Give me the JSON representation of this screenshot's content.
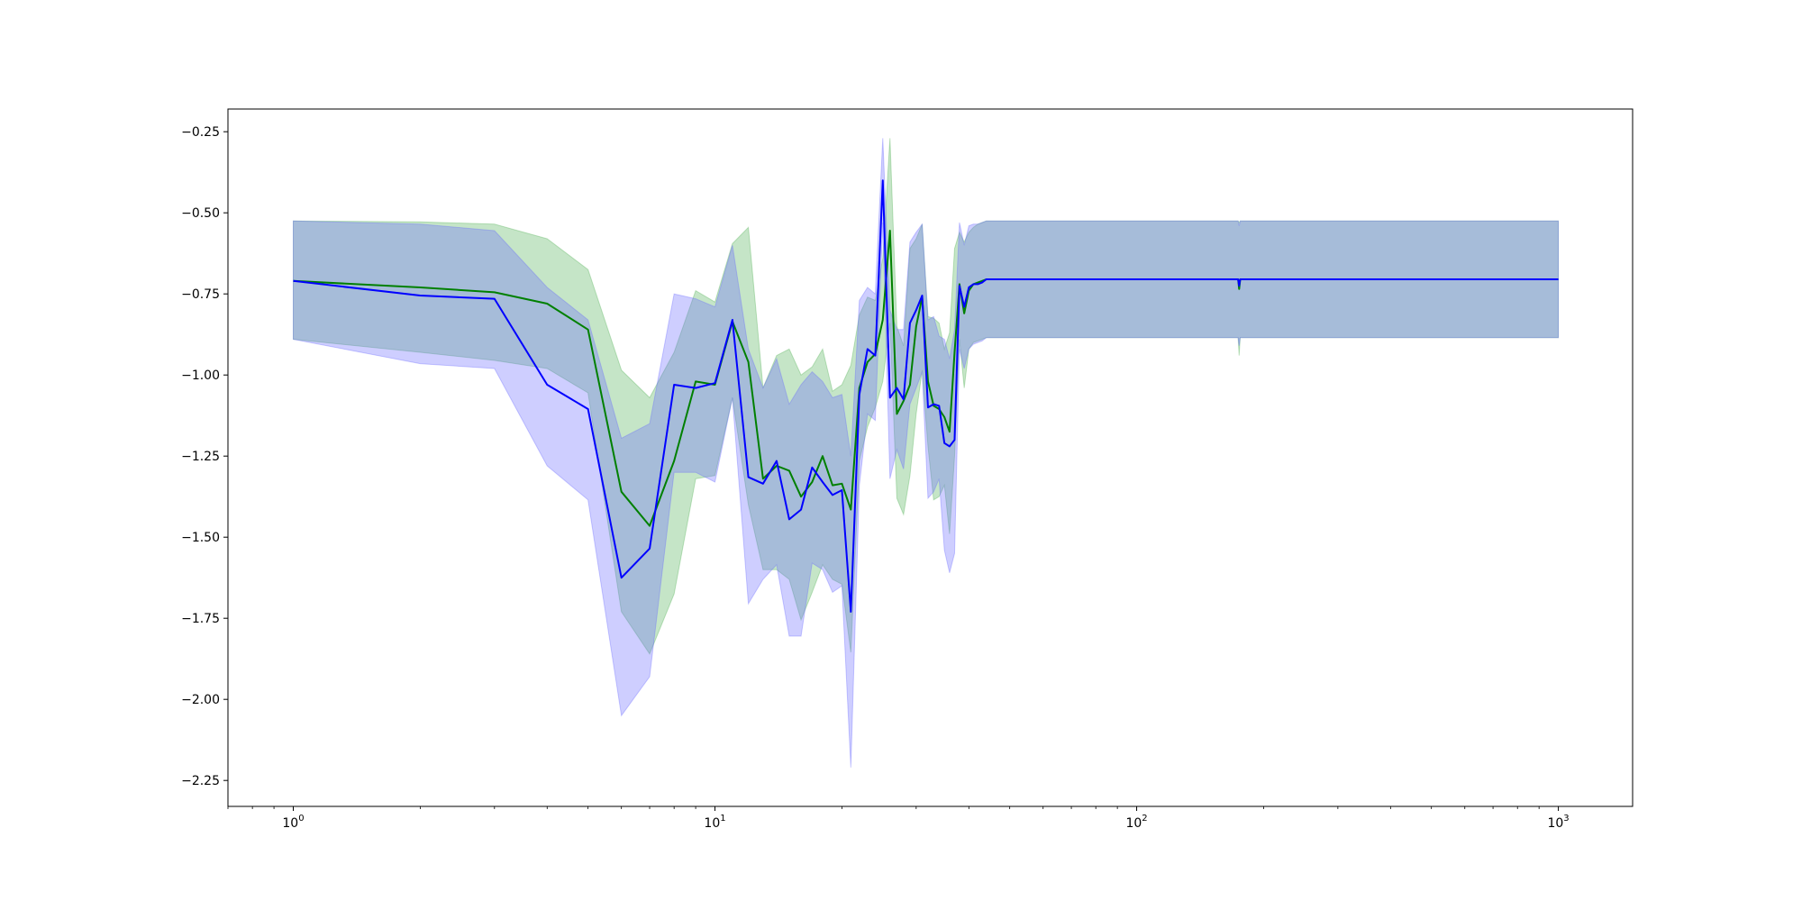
{
  "chart_data": {
    "type": "line",
    "title": "",
    "xlabel": "",
    "ylabel": "",
    "xscale": "log",
    "xlim": [
      0.7,
      1500
    ],
    "ylim": [
      -2.33,
      -0.18
    ],
    "grid": false,
    "legend": "none",
    "x_tick_labels": [
      {
        "value": 1,
        "base": "10",
        "exp": "0"
      },
      {
        "value": 10,
        "base": "10",
        "exp": "1"
      },
      {
        "value": 100,
        "base": "10",
        "exp": "2"
      },
      {
        "value": 1000,
        "base": "10",
        "exp": "3"
      }
    ],
    "y_ticks": [
      -0.25,
      -0.5,
      -0.75,
      -1.0,
      -1.25,
      -1.5,
      -1.75,
      -2.0,
      -2.25
    ],
    "y_tick_labels": [
      "−0.25",
      "−0.50",
      "−0.75",
      "−1.00",
      "−1.25",
      "−1.50",
      "−1.75",
      "−2.00",
      "−2.25"
    ],
    "series": [
      {
        "color": "#008000",
        "band_color": "#4caf50",
        "x": [
          1,
          2,
          3,
          4,
          5,
          6,
          7,
          8,
          9,
          10,
          11,
          12,
          13,
          14,
          15,
          16,
          17,
          18,
          19,
          20,
          21,
          22,
          23,
          24,
          25,
          26,
          27,
          28,
          29,
          30,
          31,
          32,
          33,
          34,
          35,
          36,
          37,
          38,
          39,
          40,
          41,
          42,
          43,
          44,
          45,
          174,
          175,
          176,
          1000
        ],
        "y": [
          -0.71,
          -0.73,
          -0.745,
          -0.78,
          -0.86,
          -1.36,
          -1.465,
          -1.265,
          -1.02,
          -1.03,
          -0.835,
          -0.96,
          -1.32,
          -1.28,
          -1.295,
          -1.375,
          -1.33,
          -1.25,
          -1.34,
          -1.335,
          -1.415,
          -1.04,
          -0.96,
          -0.935,
          -0.83,
          -0.555,
          -1.12,
          -1.08,
          -1.03,
          -0.85,
          -0.76,
          -1.02,
          -1.095,
          -1.105,
          -1.13,
          -1.175,
          -0.93,
          -0.72,
          -0.81,
          -0.74,
          -0.72,
          -0.715,
          -0.71,
          -0.705,
          -0.705,
          -0.705,
          -0.735,
          -0.705,
          -0.705
        ],
        "upper": [
          -0.525,
          -0.528,
          -0.535,
          -0.58,
          -0.675,
          -0.985,
          -1.07,
          -0.93,
          -0.74,
          -0.775,
          -0.595,
          -0.545,
          -1.04,
          -0.94,
          -0.92,
          -1.0,
          -0.975,
          -0.92,
          -1.05,
          -1.03,
          -0.97,
          -0.815,
          -0.76,
          -0.77,
          -0.64,
          -0.27,
          -0.85,
          -0.91,
          -0.61,
          -0.58,
          -0.535,
          -0.82,
          -0.825,
          -0.84,
          -0.92,
          -0.87,
          -0.61,
          -0.56,
          -0.59,
          -0.56,
          -0.545,
          -0.535,
          -0.53,
          -0.525,
          -0.525,
          -0.525,
          -0.53,
          -0.525,
          -0.525
        ],
        "lower": [
          -0.89,
          -0.93,
          -0.955,
          -0.98,
          -1.055,
          -1.73,
          -1.86,
          -1.675,
          -1.32,
          -1.31,
          -1.07,
          -1.4,
          -1.6,
          -1.6,
          -1.63,
          -1.755,
          -1.67,
          -1.585,
          -1.63,
          -1.645,
          -1.855,
          -1.265,
          -1.16,
          -1.1,
          -1.02,
          -0.84,
          -1.38,
          -1.43,
          -1.31,
          -1.12,
          -0.985,
          -1.22,
          -1.385,
          -1.375,
          -1.34,
          -1.49,
          -1.25,
          -0.89,
          -1.04,
          -0.92,
          -0.9,
          -0.895,
          -0.89,
          -0.885,
          -0.885,
          -0.885,
          -0.94,
          -0.885,
          -0.885
        ]
      },
      {
        "color": "#0000ff",
        "band_color": "#6666ff",
        "x": [
          1,
          2,
          3,
          4,
          5,
          6,
          7,
          8,
          9,
          10,
          11,
          12,
          13,
          14,
          15,
          16,
          17,
          18,
          19,
          20,
          21,
          22,
          23,
          24,
          25,
          26,
          27,
          28,
          29,
          30,
          31,
          32,
          33,
          34,
          35,
          36,
          37,
          38,
          39,
          40,
          41,
          42,
          43,
          44,
          45,
          174,
          175,
          176,
          1000
        ],
        "y": [
          -0.71,
          -0.755,
          -0.765,
          -1.03,
          -1.105,
          -1.625,
          -1.535,
          -1.03,
          -1.04,
          -1.025,
          -0.83,
          -1.315,
          -1.335,
          -1.265,
          -1.445,
          -1.415,
          -1.285,
          -1.33,
          -1.37,
          -1.355,
          -1.73,
          -1.06,
          -0.92,
          -0.94,
          -0.4,
          -1.07,
          -1.04,
          -1.075,
          -0.84,
          -0.8,
          -0.755,
          -1.1,
          -1.09,
          -1.095,
          -1.21,
          -1.22,
          -1.2,
          -0.725,
          -0.79,
          -0.73,
          -0.72,
          -0.72,
          -0.715,
          -0.705,
          -0.705,
          -0.705,
          -0.725,
          -0.705,
          -0.705
        ],
        "upper": [
          -0.525,
          -0.535,
          -0.555,
          -0.73,
          -0.83,
          -1.195,
          -1.15,
          -0.75,
          -0.765,
          -0.79,
          -0.6,
          -0.92,
          -1.04,
          -0.95,
          -1.09,
          -1.03,
          -0.99,
          -1.02,
          -1.07,
          -1.06,
          -1.25,
          -0.77,
          -0.73,
          -0.75,
          -0.27,
          -0.8,
          -0.86,
          -0.86,
          -0.59,
          -0.56,
          -0.535,
          -0.83,
          -0.82,
          -0.88,
          -0.89,
          -0.95,
          -0.86,
          -0.53,
          -0.6,
          -0.54,
          -0.535,
          -0.535,
          -0.53,
          -0.525,
          -0.525,
          -0.525,
          -0.54,
          -0.525,
          -0.525
        ],
        "lower": [
          -0.89,
          -0.965,
          -0.98,
          -1.28,
          -1.385,
          -2.05,
          -1.93,
          -1.3,
          -1.3,
          -1.33,
          -1.07,
          -1.705,
          -1.63,
          -1.585,
          -1.805,
          -1.805,
          -1.58,
          -1.6,
          -1.67,
          -1.65,
          -2.21,
          -1.34,
          -1.12,
          -1.14,
          -0.53,
          -1.32,
          -1.23,
          -1.29,
          -1.09,
          -1.04,
          -0.99,
          -1.38,
          -1.36,
          -1.32,
          -1.54,
          -1.61,
          -1.55,
          -0.92,
          -0.98,
          -0.92,
          -0.905,
          -0.9,
          -0.895,
          -0.885,
          -0.885,
          -0.885,
          -0.91,
          -0.885,
          -0.885
        ]
      }
    ]
  }
}
